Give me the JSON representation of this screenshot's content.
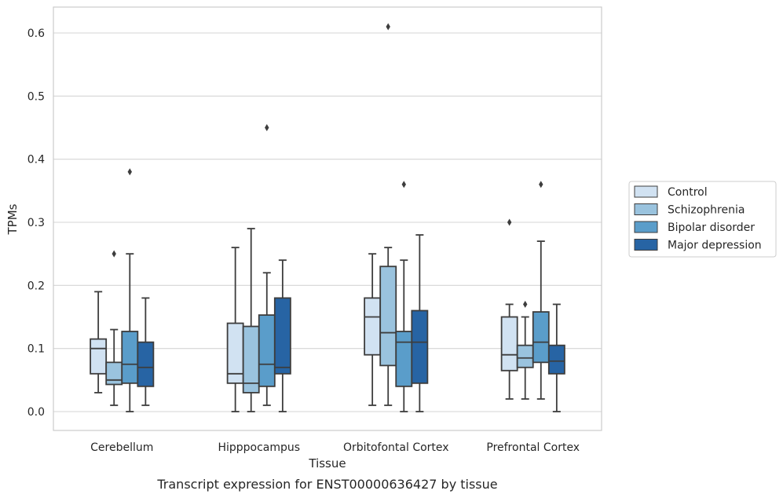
{
  "chart_data": {
    "type": "box",
    "title": "",
    "caption": "Transcript expression for ENST00000636427 by tissue",
    "xlabel": "Tissue",
    "ylabel": "TPMs",
    "ylim": [
      -0.03,
      0.64
    ],
    "yticks": [
      0.0,
      0.1,
      0.2,
      0.3,
      0.4,
      0.5,
      0.6
    ],
    "ytick_labels": [
      "0.0",
      "0.1",
      "0.2",
      "0.3",
      "0.4",
      "0.5",
      "0.6"
    ],
    "grid": "horizontal",
    "legend_position": "right",
    "categories": [
      "Cerebellum",
      "Hipppocampus",
      "Orbitofontal Cortex",
      "Prefrontal Cortex"
    ],
    "series": [
      {
        "name": "Control",
        "color": "#d1e2f2",
        "boxes": [
          {
            "whislo": 0.03,
            "q1": 0.06,
            "med": 0.1,
            "q3": 0.115,
            "whishi": 0.19,
            "fliers": []
          },
          {
            "whislo": 0.0,
            "q1": 0.045,
            "med": 0.06,
            "q3": 0.14,
            "whishi": 0.26,
            "fliers": []
          },
          {
            "whislo": 0.01,
            "q1": 0.09,
            "med": 0.15,
            "q3": 0.18,
            "whishi": 0.25,
            "fliers": []
          },
          {
            "whislo": 0.02,
            "q1": 0.065,
            "med": 0.09,
            "q3": 0.15,
            "whishi": 0.17,
            "fliers": [
              0.3
            ]
          }
        ]
      },
      {
        "name": "Schizophrenia",
        "color": "#9ac3de",
        "boxes": [
          {
            "whislo": 0.01,
            "q1": 0.043,
            "med": 0.05,
            "q3": 0.078,
            "whishi": 0.13,
            "fliers": [
              0.25
            ]
          },
          {
            "whislo": 0.0,
            "q1": 0.03,
            "med": 0.045,
            "q3": 0.135,
            "whishi": 0.29,
            "fliers": []
          },
          {
            "whislo": 0.01,
            "q1": 0.073,
            "med": 0.125,
            "q3": 0.23,
            "whishi": 0.26,
            "fliers": [
              0.61
            ]
          },
          {
            "whislo": 0.02,
            "q1": 0.07,
            "med": 0.085,
            "q3": 0.105,
            "whishi": 0.15,
            "fliers": [
              0.17
            ]
          }
        ]
      },
      {
        "name": "Bipolar disorder",
        "color": "#5a9dca",
        "boxes": [
          {
            "whislo": 0.0,
            "q1": 0.045,
            "med": 0.075,
            "q3": 0.127,
            "whishi": 0.25,
            "fliers": [
              0.38
            ]
          },
          {
            "whislo": 0.01,
            "q1": 0.04,
            "med": 0.075,
            "q3": 0.153,
            "whishi": 0.22,
            "fliers": [
              0.45
            ]
          },
          {
            "whislo": 0.0,
            "q1": 0.04,
            "med": 0.11,
            "q3": 0.127,
            "whishi": 0.24,
            "fliers": [
              0.36
            ]
          },
          {
            "whislo": 0.02,
            "q1": 0.078,
            "med": 0.11,
            "q3": 0.158,
            "whishi": 0.27,
            "fliers": [
              0.36
            ]
          }
        ]
      },
      {
        "name": "Major depression",
        "color": "#2764a4",
        "boxes": [
          {
            "whislo": 0.01,
            "q1": 0.04,
            "med": 0.07,
            "q3": 0.11,
            "whishi": 0.18,
            "fliers": []
          },
          {
            "whislo": 0.0,
            "q1": 0.06,
            "med": 0.07,
            "q3": 0.18,
            "whishi": 0.24,
            "fliers": []
          },
          {
            "whislo": 0.0,
            "q1": 0.045,
            "med": 0.11,
            "q3": 0.16,
            "whishi": 0.28,
            "fliers": []
          },
          {
            "whislo": 0.0,
            "q1": 0.06,
            "med": 0.08,
            "q3": 0.105,
            "whishi": 0.17,
            "fliers": []
          }
        ]
      }
    ]
  }
}
